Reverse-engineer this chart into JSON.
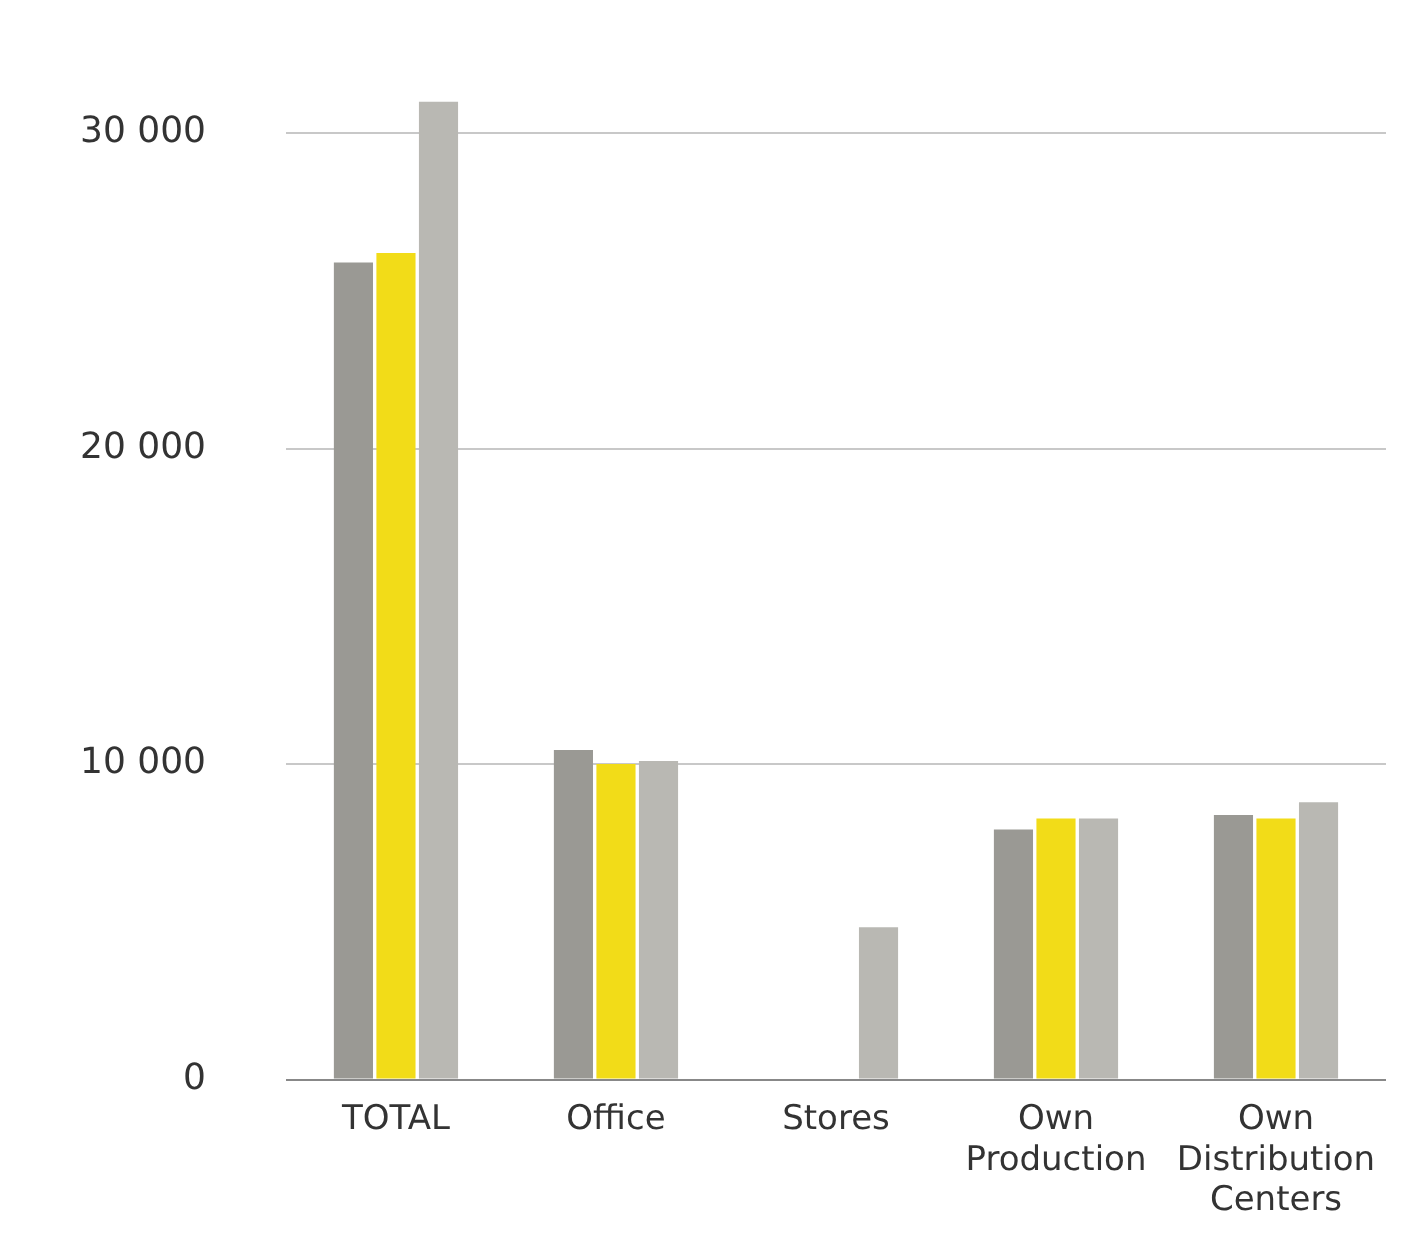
{
  "chart_data": {
    "type": "bar",
    "categories": [
      "TOTAL",
      "Office",
      "Stores",
      "Own Production",
      "Own Distribution Centers"
    ],
    "series": [
      {
        "color": "#9a9994",
        "values": [
          25900,
          10450,
          null,
          7930,
          8390
        ]
      },
      {
        "color": "#f2dc18",
        "values": [
          26200,
          10000,
          null,
          8280,
          8280
        ]
      },
      {
        "color": "#b9b8b3",
        "values": [
          31000,
          10100,
          4830,
          8280,
          8790
        ]
      }
    ],
    "ylim": [
      0,
      31000
    ],
    "yticks": [
      {
        "value": 0,
        "label": "0"
      },
      {
        "value": 10000,
        "label": "10 000"
      },
      {
        "value": 20000,
        "label": "20 000"
      },
      {
        "value": 30000,
        "label": "30 000"
      }
    ],
    "grid": "y",
    "legend": false
  }
}
